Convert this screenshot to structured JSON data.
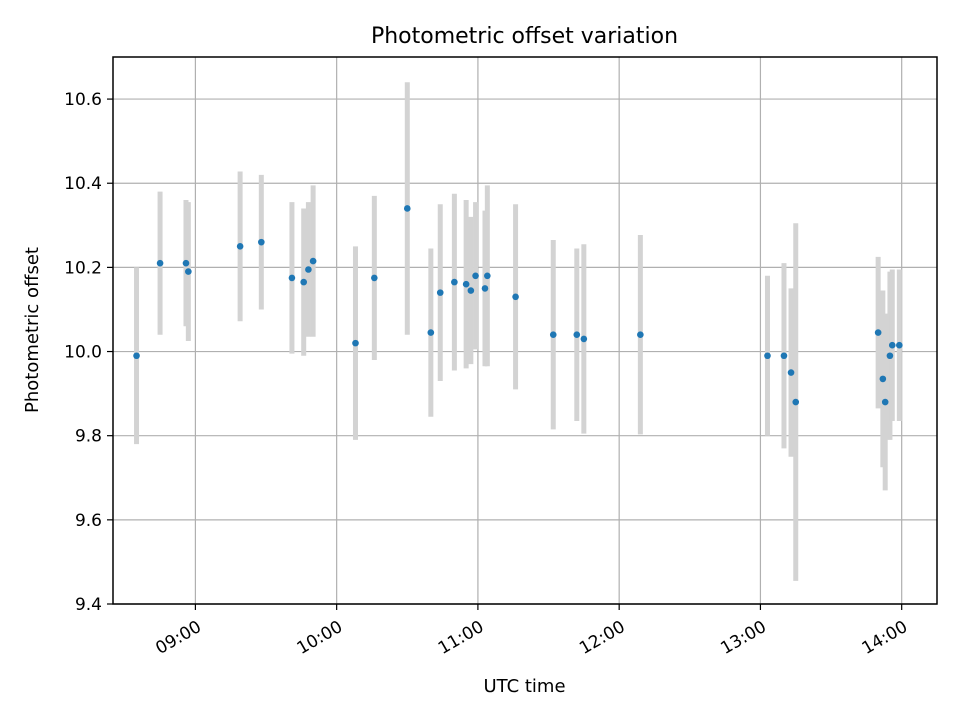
{
  "chart_data": {
    "type": "scatter",
    "title": "Photometric offset variation",
    "xlabel": "UTC time",
    "ylabel": "Photometric offset",
    "grid": true,
    "legend": "none",
    "xlim": [
      "08:25",
      "14:15"
    ],
    "ylim": [
      9.4,
      10.7
    ],
    "x_ticks": [
      "09:00",
      "10:00",
      "11:00",
      "12:00",
      "13:00",
      "14:00"
    ],
    "y_ticks": [
      "9.4",
      "9.6",
      "9.8",
      "10.0",
      "10.2",
      "10.4",
      "10.6"
    ],
    "colors": {
      "point": "#1f77b4",
      "errorbar": "#d3d3d3",
      "grid": "#b0b0b0"
    },
    "series": [
      {
        "points": [
          {
            "x": "08:35",
            "y": 9.99,
            "err": 0.21
          },
          {
            "x": "08:45",
            "y": 10.21,
            "err": 0.17
          },
          {
            "x": "08:56",
            "y": 10.21,
            "err": 0.15
          },
          {
            "x": "08:57",
            "y": 10.19,
            "err": 0.165
          },
          {
            "x": "09:19",
            "y": 10.25,
            "err": 0.178
          },
          {
            "x": "09:28",
            "y": 10.26,
            "err": 0.16
          },
          {
            "x": "09:41",
            "y": 10.175,
            "err": 0.18
          },
          {
            "x": "09:46",
            "y": 10.165,
            "err": 0.175
          },
          {
            "x": "09:48",
            "y": 10.195,
            "err": 0.16
          },
          {
            "x": "09:50",
            "y": 10.215,
            "err": 0.18
          },
          {
            "x": "10:08",
            "y": 10.02,
            "err": 0.23
          },
          {
            "x": "10:16",
            "y": 10.175,
            "err": 0.195
          },
          {
            "x": "10:30",
            "y": 10.34,
            "err": 0.3
          },
          {
            "x": "10:40",
            "y": 10.045,
            "err": 0.2
          },
          {
            "x": "10:44",
            "y": 10.14,
            "err": 0.21
          },
          {
            "x": "10:50",
            "y": 10.165,
            "err": 0.21
          },
          {
            "x": "10:55",
            "y": 10.16,
            "err": 0.2
          },
          {
            "x": "10:57",
            "y": 10.145,
            "err": 0.175
          },
          {
            "x": "10:59",
            "y": 10.18,
            "err": 0.175
          },
          {
            "x": "11:03",
            "y": 10.15,
            "err": 0.185
          },
          {
            "x": "11:04",
            "y": 10.18,
            "err": 0.215
          },
          {
            "x": "11:16",
            "y": 10.13,
            "err": 0.22
          },
          {
            "x": "11:32",
            "y": 10.04,
            "err": 0.225
          },
          {
            "x": "11:42",
            "y": 10.04,
            "err": 0.205
          },
          {
            "x": "11:45",
            "y": 10.03,
            "err": 0.225
          },
          {
            "x": "12:09",
            "y": 10.04,
            "err": 0.237
          },
          {
            "x": "13:03",
            "y": 9.99,
            "err": 0.19
          },
          {
            "x": "13:10",
            "y": 9.99,
            "err": 0.22
          },
          {
            "x": "13:13",
            "y": 9.95,
            "err": 0.2
          },
          {
            "x": "13:15",
            "y": 9.88,
            "err": 0.425
          },
          {
            "x": "13:50",
            "y": 10.045,
            "err": 0.18
          },
          {
            "x": "13:52",
            "y": 9.935,
            "err": 0.21
          },
          {
            "x": "13:53",
            "y": 9.88,
            "err": 0.21
          },
          {
            "x": "13:55",
            "y": 9.99,
            "err": 0.2
          },
          {
            "x": "13:56",
            "y": 10.015,
            "err": 0.18
          },
          {
            "x": "13:59",
            "y": 10.015,
            "err": 0.18
          }
        ]
      }
    ]
  }
}
